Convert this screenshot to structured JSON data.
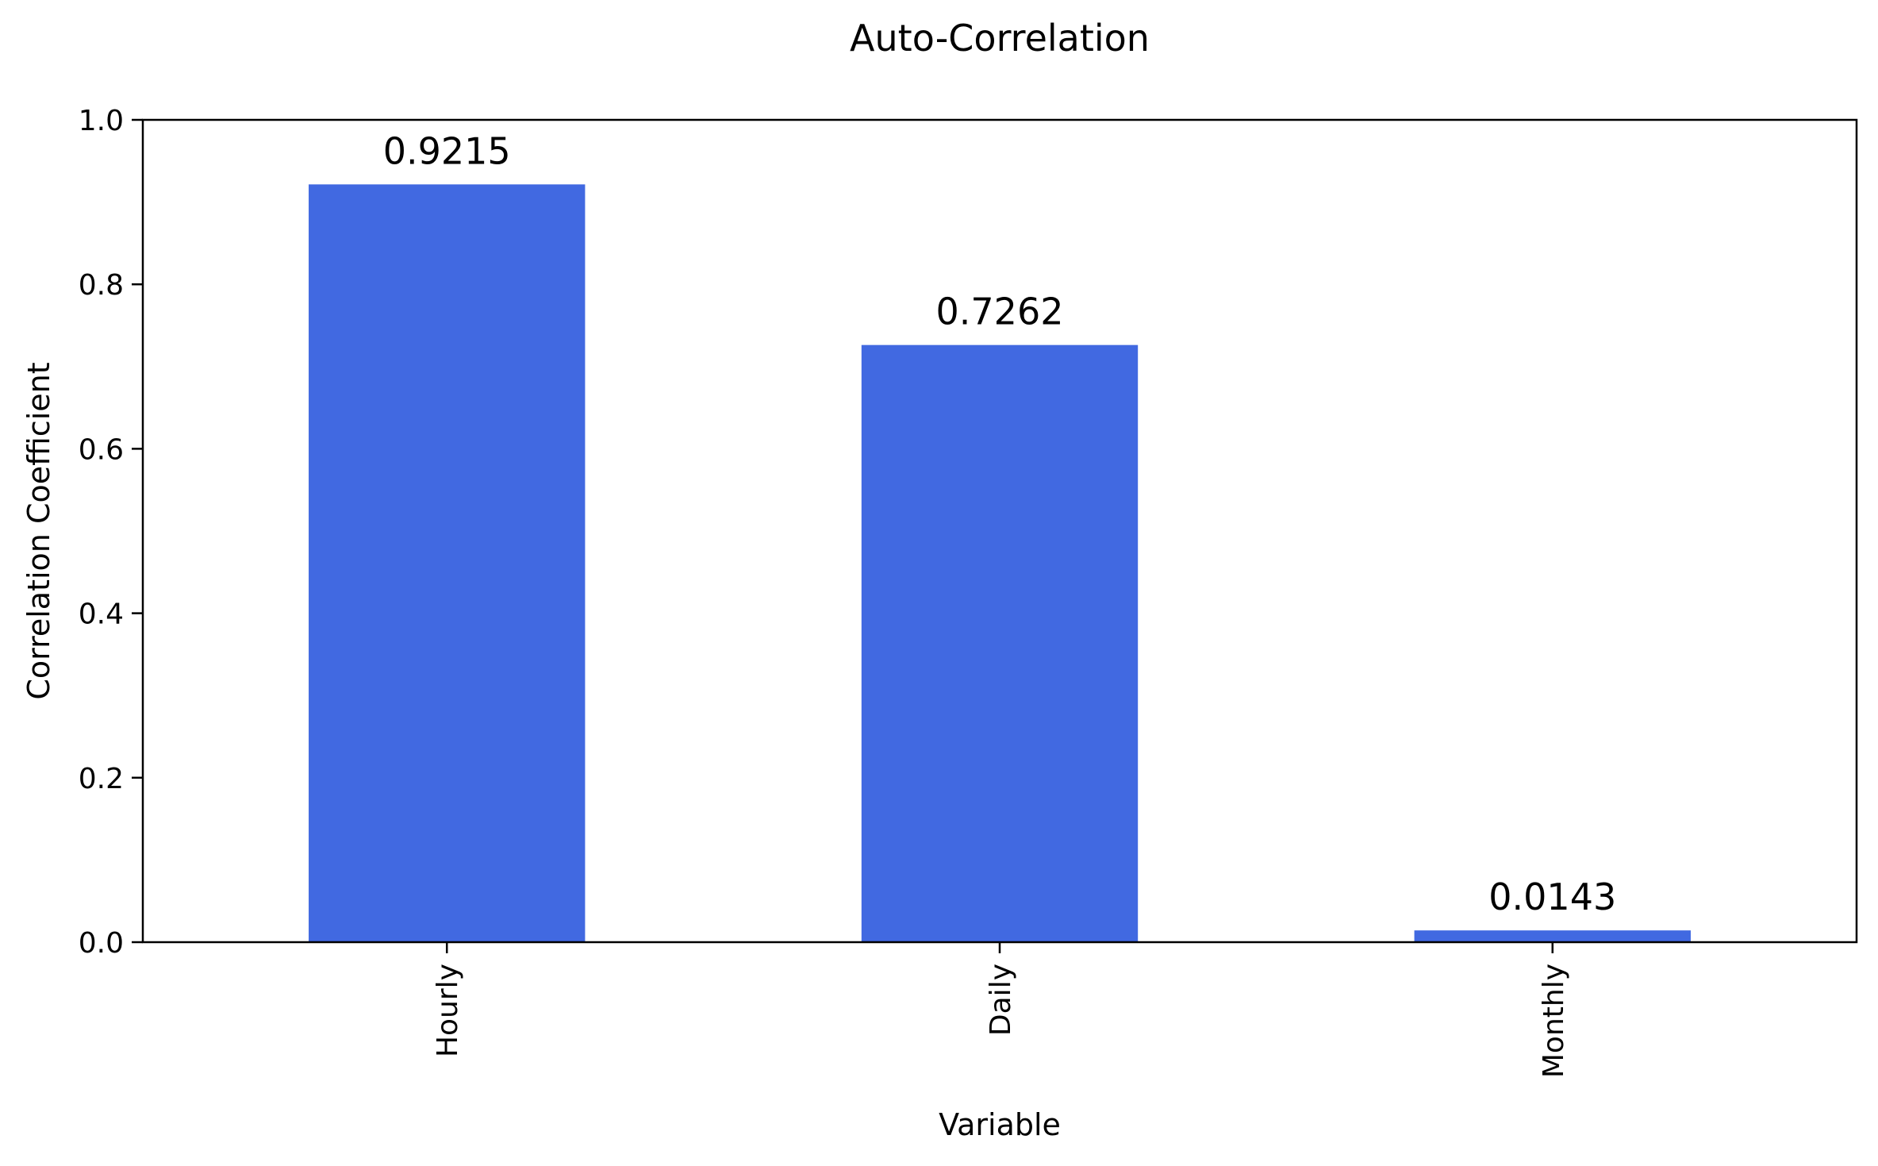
{
  "chart_data": {
    "type": "bar",
    "title": "Auto-Correlation",
    "xlabel": "Variable",
    "ylabel": "Correlation Coefficient",
    "categories": [
      "Hourly",
      "Daily",
      "Monthly"
    ],
    "values": [
      0.9215,
      0.7262,
      0.0143
    ],
    "data_labels": [
      "0.9215",
      "0.7262",
      "0.0143"
    ],
    "ylim": [
      0.0,
      1.0
    ],
    "yticks": [
      0.0,
      0.2,
      0.4,
      0.6,
      0.8,
      1.0
    ],
    "ytick_labels": [
      "0.0",
      "0.2",
      "0.4",
      "0.6",
      "0.8",
      "1.0"
    ],
    "xtick_rotation": "vertical",
    "grid": false,
    "legend": "none",
    "bar_color": "#4169E1"
  }
}
